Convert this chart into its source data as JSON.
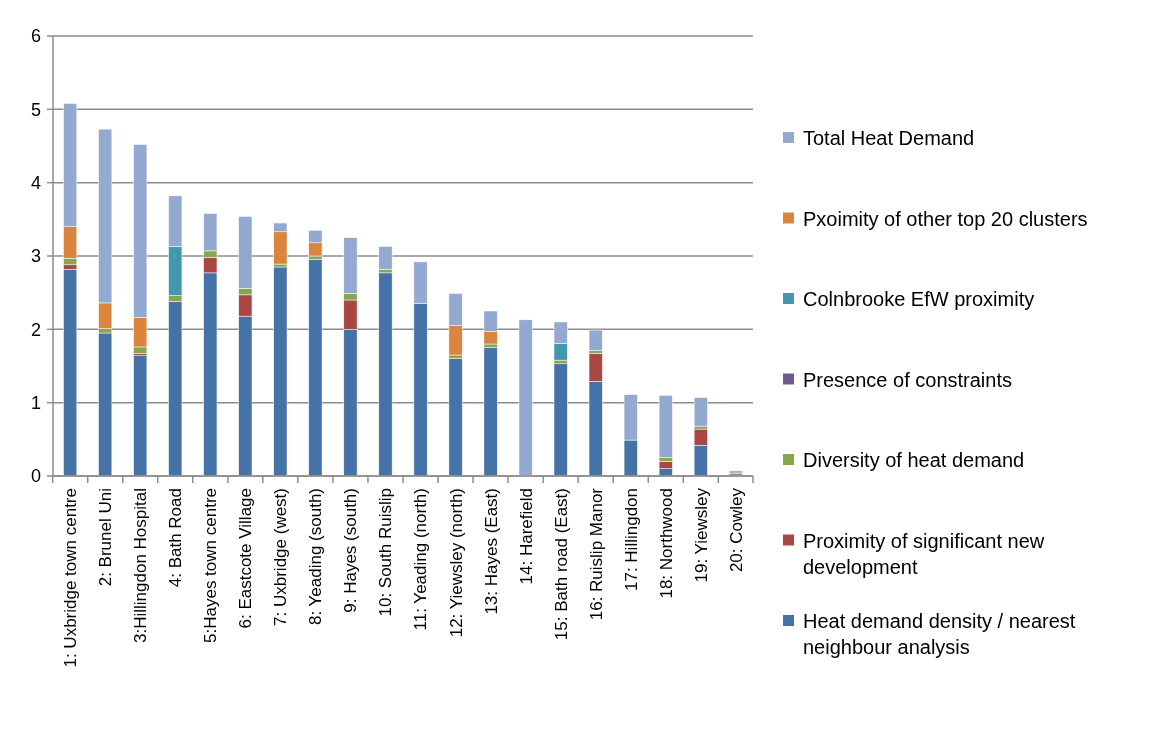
{
  "chart_data": {
    "type": "bar",
    "stacked": true,
    "legend": "right",
    "grid": "y",
    "categories": [
      "1: Uxbridge town centre",
      "2: Brunel Uni",
      "3:Hillingdon Hospital",
      "4: Bath Road",
      "5:Hayes town centre",
      "6: Eastcote Village",
      "7: Uxbridge (west)",
      "8: Yeading (south)",
      "9: Hayes (south)",
      "10: South Ruislip",
      "11: Yeading (north)",
      "12: Yiewsley (north)",
      "13: Hayes (East)",
      "14: Harefield",
      "15: Bath road (East)",
      "16: Ruislip Manor",
      "17: Hillingdon",
      "18: Northwood",
      "19: Yiewsley",
      "20: Cowley"
    ],
    "ylim": [
      0,
      6
    ],
    "yticks": [
      0,
      1,
      2,
      3,
      4,
      5,
      6
    ],
    "series": [
      {
        "name": "Heat demand density / nearest neighbour analysis",
        "color": "#4572a7",
        "values": [
          2.82,
          1.95,
          1.64,
          2.38,
          2.77,
          2.18,
          2.85,
          2.95,
          2.0,
          2.77,
          2.35,
          1.6,
          1.75,
          0,
          1.53,
          1.29,
          0.49,
          0.1,
          0.42,
          0
        ]
      },
      {
        "name": "Proximity of significant new development",
        "color": "#aa4643",
        "values": [
          0.06,
          0,
          0.03,
          0,
          0.21,
          0.29,
          0,
          0,
          0.4,
          0,
          0,
          0,
          0,
          0,
          0,
          0.38,
          0,
          0.1,
          0.22,
          0
        ]
      },
      {
        "name": "Diversity of heat demand",
        "color": "#89a54e",
        "values": [
          0.09,
          0.06,
          0.09,
          0.08,
          0.09,
          0.09,
          0.04,
          0.05,
          0.09,
          0.05,
          0,
          0.05,
          0.05,
          null,
          0.05,
          0.04,
          0,
          0.05,
          0.04,
          0.04
        ]
      },
      {
        "name": "Presence of constraints",
        "color": "#71588f",
        "values": [
          0,
          0,
          0,
          0,
          0,
          0,
          0,
          0,
          0,
          0,
          0,
          0,
          0,
          0,
          0,
          0,
          0,
          0,
          0,
          0
        ]
      },
      {
        "name": "Colnbrooke EfW proximity",
        "color": "#4198af",
        "values": [
          0,
          0,
          0,
          0.67,
          0,
          0,
          0,
          0,
          0,
          0,
          0,
          0,
          0,
          0,
          0.23,
          0,
          0,
          0,
          0,
          0
        ]
      },
      {
        "name": "Pxoimity of other top 20 clusters",
        "color": "#db843d",
        "values": [
          0.43,
          0.35,
          0.4,
          0,
          0,
          0,
          0.44,
          0.18,
          0,
          0,
          0,
          0.4,
          0.17,
          0,
          0,
          0,
          0,
          0,
          0,
          0
        ]
      },
      {
        "name": "Total Heat Demand",
        "color": "#93a9cf",
        "values": [
          1.68,
          2.37,
          2.36,
          0.69,
          0.51,
          0.98,
          0.12,
          0.17,
          0.76,
          0.31,
          0.57,
          0.44,
          0.28,
          2.13,
          0.29,
          0.28,
          0.62,
          0.85,
          0.39,
          0.03
        ]
      }
    ]
  }
}
